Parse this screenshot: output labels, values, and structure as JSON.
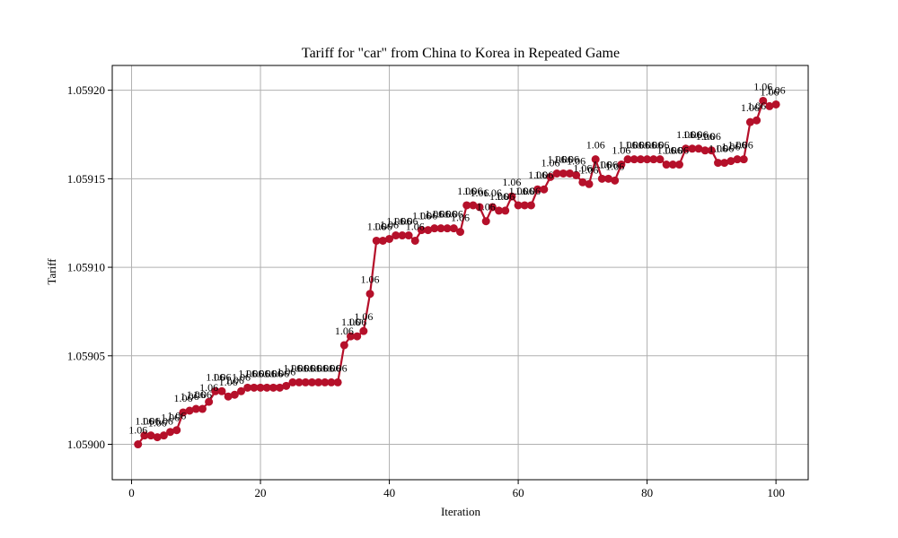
{
  "chart_data": {
    "type": "line",
    "title": "Tariff for \"car\" from China to Korea in Repeated Game",
    "xlabel": "Iteration",
    "ylabel": "Tariff",
    "xlim": [
      -3,
      105
    ],
    "ylim": [
      1.05898,
      1.059214
    ],
    "xticks": [
      0,
      20,
      40,
      60,
      80,
      100
    ],
    "xtick_labels": [
      "0",
      "20",
      "40",
      "60",
      "80",
      "100"
    ],
    "yticks": [
      1.059,
      1.05905,
      1.0591,
      1.05915,
      1.0592
    ],
    "ytick_labels": [
      "1.05900",
      "1.05905",
      "1.05910",
      "1.05915",
      "1.05920"
    ],
    "grid": true,
    "marker": "circle",
    "color": "#b5102a",
    "data_label_text": "1.06",
    "x": [
      1,
      2,
      3,
      4,
      5,
      6,
      7,
      8,
      9,
      10,
      11,
      12,
      13,
      14,
      15,
      16,
      17,
      18,
      19,
      20,
      21,
      22,
      23,
      24,
      25,
      26,
      27,
      28,
      29,
      30,
      31,
      32,
      33,
      34,
      35,
      36,
      37,
      38,
      39,
      40,
      41,
      42,
      43,
      44,
      45,
      46,
      47,
      48,
      49,
      50,
      51,
      52,
      53,
      54,
      55,
      56,
      57,
      58,
      59,
      60,
      61,
      62,
      63,
      64,
      65,
      66,
      67,
      68,
      69,
      70,
      71,
      72,
      73,
      74,
      75,
      76,
      77,
      78,
      79,
      80,
      81,
      82,
      83,
      84,
      85,
      86,
      87,
      88,
      89,
      90,
      91,
      92,
      93,
      94,
      95,
      96,
      97,
      98,
      99,
      100
    ],
    "y": [
      1.059,
      1.059005,
      1.059005,
      1.059004,
      1.059005,
      1.059007,
      1.059008,
      1.059018,
      1.059019,
      1.05902,
      1.05902,
      1.059024,
      1.05903,
      1.05903,
      1.059027,
      1.059028,
      1.05903,
      1.059032,
      1.059032,
      1.059032,
      1.059032,
      1.059032,
      1.059032,
      1.059033,
      1.059035,
      1.059035,
      1.059035,
      1.059035,
      1.059035,
      1.059035,
      1.059035,
      1.059035,
      1.059056,
      1.059061,
      1.059061,
      1.059064,
      1.059085,
      1.059115,
      1.059115,
      1.059116,
      1.059118,
      1.059118,
      1.059118,
      1.059115,
      1.059121,
      1.059121,
      1.059122,
      1.059122,
      1.059122,
      1.059122,
      1.05912,
      1.059135,
      1.059135,
      1.059134,
      1.059126,
      1.059134,
      1.059132,
      1.059132,
      1.05914,
      1.059135,
      1.059135,
      1.059135,
      1.059144,
      1.059144,
      1.059151,
      1.059153,
      1.059153,
      1.059153,
      1.059152,
      1.059148,
      1.059147,
      1.059161,
      1.05915,
      1.05915,
      1.059149,
      1.059158,
      1.059161,
      1.059161,
      1.059161,
      1.059161,
      1.059161,
      1.059161,
      1.059158,
      1.059158,
      1.059158,
      1.059167,
      1.059167,
      1.059167,
      1.059166,
      1.059166,
      1.059159,
      1.059159,
      1.05916,
      1.059161,
      1.059161,
      1.059182,
      1.059183,
      1.059194,
      1.059191,
      1.059192
    ]
  }
}
